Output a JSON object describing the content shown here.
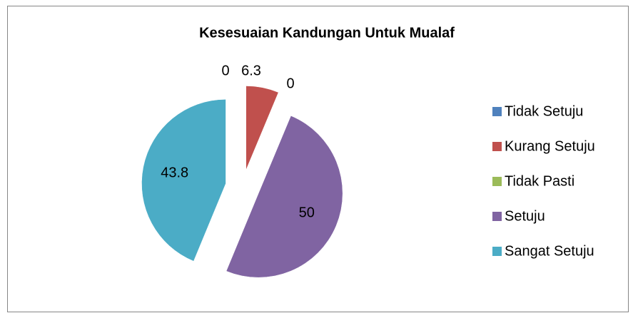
{
  "chart_data": {
    "type": "pie",
    "title": "Kesesuaian Kandungan Untuk Mualaf",
    "categories": [
      "Tidak Setuju",
      "Kurang Setuju",
      "Tidak Pasti",
      "Setuju",
      "Sangat Setuju"
    ],
    "values": [
      0,
      6.3,
      0,
      50,
      43.8
    ],
    "colors": [
      "#4f81bd",
      "#c0504d",
      "#9bbb59",
      "#8064a2",
      "#4bacc6"
    ],
    "legend": "right"
  }
}
